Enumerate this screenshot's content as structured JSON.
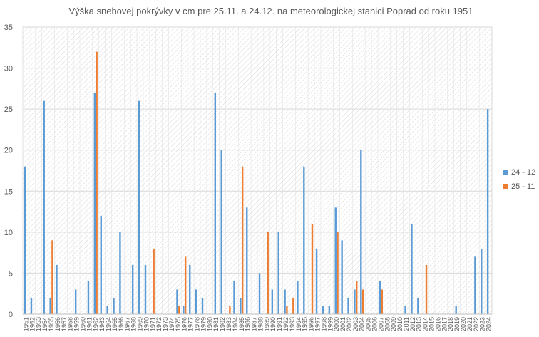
{
  "chart_data": {
    "type": "bar",
    "title": "Výška snehovej pokrývky v cm pre 25.11. a 24.12. na meteorologickej stanici Poprad od roku 1951",
    "xlabel": "",
    "ylabel": "",
    "ylim": [
      0,
      35
    ],
    "yticks": [
      "0",
      "5",
      "10",
      "15",
      "20",
      "25",
      "30",
      "35"
    ],
    "grid": true,
    "legend_position": "right",
    "categories": [
      "1951",
      "1952",
      "1953",
      "1954",
      "1955",
      "1956",
      "1957",
      "1958",
      "1959",
      "1960",
      "1961",
      "1962",
      "1963",
      "1964",
      "1965",
      "1966",
      "1967",
      "1968",
      "1969",
      "1970",
      "1971",
      "1972",
      "1973",
      "1974",
      "1975",
      "1976",
      "1977",
      "1978",
      "1979",
      "1980",
      "1981",
      "1982",
      "1983",
      "1984",
      "1985",
      "1986",
      "1987",
      "1988",
      "1989",
      "1990",
      "1991",
      "1992",
      "1993",
      "1994",
      "1995",
      "1996",
      "1997",
      "1998",
      "1999",
      "2000",
      "2001",
      "2002",
      "2003",
      "2004",
      "2005",
      "2006",
      "2007",
      "2008",
      "2009",
      "2010",
      "2011",
      "2012",
      "2013",
      "2014",
      "2015",
      "2016",
      "2017",
      "2018",
      "2019",
      "2020",
      "2021",
      "2022",
      "2023",
      "2024"
    ],
    "series": [
      {
        "name": "24 - 12",
        "color": "#5b9bd5",
        "values": [
          18,
          2,
          null,
          26,
          2,
          6,
          null,
          null,
          3,
          null,
          4,
          27,
          12,
          1,
          2,
          10,
          null,
          6,
          26,
          6,
          null,
          null,
          null,
          null,
          3,
          1,
          6,
          3,
          2,
          null,
          27,
          20,
          null,
          4,
          2,
          13,
          null,
          5,
          null,
          3,
          10,
          3,
          null,
          4,
          18,
          null,
          8,
          1,
          1,
          13,
          9,
          2,
          3,
          20,
          null,
          null,
          4,
          null,
          null,
          null,
          1,
          11,
          2,
          null,
          null,
          null,
          null,
          null,
          1,
          null,
          null,
          7,
          8,
          25
        ]
      },
      {
        "name": "25 - 11",
        "color": "#ed7d31",
        "values": [
          null,
          null,
          null,
          null,
          9,
          null,
          null,
          null,
          null,
          null,
          null,
          32,
          null,
          null,
          null,
          null,
          null,
          null,
          null,
          null,
          8,
          null,
          null,
          null,
          1,
          7,
          null,
          null,
          null,
          null,
          null,
          null,
          1,
          null,
          18,
          null,
          null,
          null,
          10,
          null,
          null,
          1,
          2,
          null,
          null,
          11,
          null,
          null,
          null,
          10,
          null,
          null,
          4,
          3,
          null,
          null,
          3,
          null,
          null,
          null,
          null,
          null,
          null,
          6,
          null,
          null,
          null,
          null,
          null,
          null,
          null,
          null,
          null,
          null
        ]
      }
    ]
  }
}
